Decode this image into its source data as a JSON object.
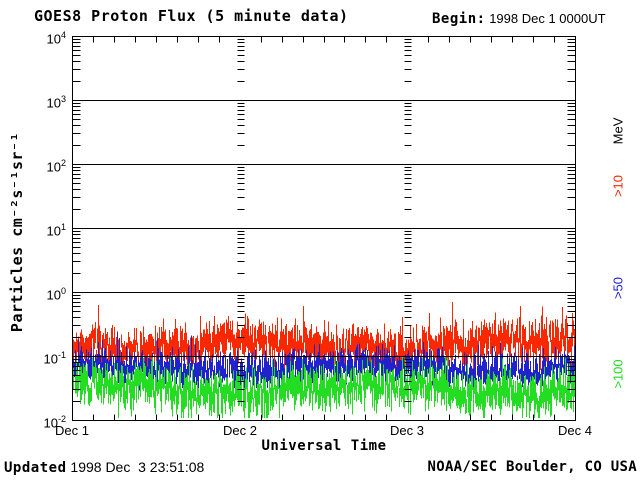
{
  "header": {
    "title": "GOES8 Proton Flux (5 minute data)",
    "begin_label": "Begin:",
    "begin_value": " 1998 Dec 1 0000UT"
  },
  "footer": {
    "updated_label": "Updated",
    "updated_value": " 1998 Dec  3 23:51:08",
    "credit": "NOAA/SEC Boulder, CO USA"
  },
  "chart_data": {
    "type": "line",
    "title": "GOES8 Proton Flux (5 minute data)",
    "begin": "1998 Dec 1 0000UT",
    "xlabel": "Universal Time",
    "ylabel": "Particles cm⁻²s⁻¹sr⁻¹",
    "x_tick_labels": [
      "Dec 1",
      "Dec 2",
      "Dec 3",
      "Dec 4"
    ],
    "x_span_days": 3,
    "x_minor_tick_hours": 3,
    "y_scale": "log",
    "ylim": [
      0.01,
      10000
    ],
    "y_tick_exponents": [
      4,
      3,
      2,
      1,
      0,
      -1,
      -2
    ],
    "grid": {
      "horizontal_decade_lines": [
        1000,
        100,
        10,
        1,
        0.1
      ],
      "vertical_tick_columns_at_days": [
        "Dec 2",
        "Dec 3"
      ],
      "legend_position": "right-margin-rotated"
    },
    "legend_unit": "MeV",
    "series": [
      {
        "name": ">10",
        "color": "#fa2800",
        "median_flux": 0.15,
        "typical_range": [
          0.08,
          0.4
        ],
        "peak_flux": 0.7
      },
      {
        "name": ">50",
        "color": "#2222cc",
        "median_flux": 0.065,
        "typical_range": [
          0.035,
          0.13
        ],
        "peak_flux": 0.25
      },
      {
        "name": ">100",
        "color": "#22dd22",
        "median_flux": 0.03,
        "typical_range": [
          0.013,
          0.07
        ],
        "peak_flux": 0.1
      }
    ],
    "noise_seed": 19981201
  }
}
